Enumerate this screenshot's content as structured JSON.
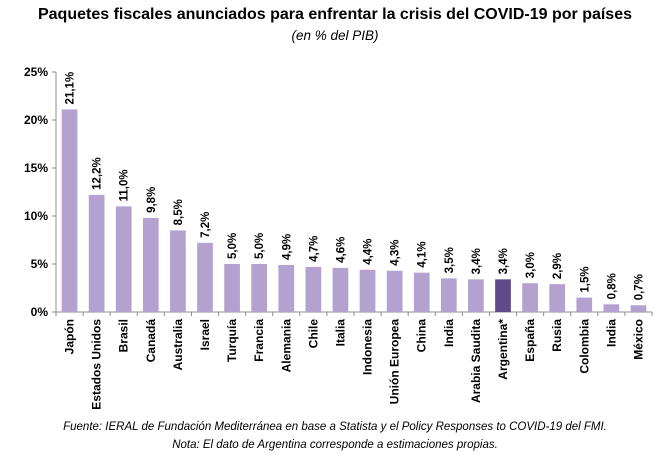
{
  "chart_data": {
    "type": "bar",
    "title": "Paquetes fiscales anunciados para enfrentar la crisis del  COVID-19 por países",
    "subtitle": "(en % del PIB)",
    "xlabel": "",
    "ylabel": "",
    "ylim": [
      0,
      25
    ],
    "yticks": [
      "0%",
      "5%",
      "10%",
      "15%",
      "20%",
      "25%"
    ],
    "grid": false,
    "categories": [
      "Japón",
      "Estados Unidos",
      "Brasil",
      "Canadá",
      "Australia",
      "Israel",
      "Turquía",
      "Francia",
      "Alemania",
      "Chile",
      "Italia",
      "Indonesia",
      "Unión Europea",
      "China",
      "India",
      "Arabia Saudita",
      "Argentina*",
      "España",
      "Rusia",
      "Colombia",
      "India",
      "México"
    ],
    "values": [
      21.1,
      12.2,
      11.0,
      9.8,
      8.5,
      7.2,
      5.0,
      5.0,
      4.9,
      4.7,
      4.6,
      4.4,
      4.3,
      4.1,
      3.5,
      3.4,
      3.4,
      3.0,
      2.9,
      1.5,
      0.8,
      0.7
    ],
    "value_labels": [
      "21,1%",
      "12,2%",
      "11,0%",
      "9,8%",
      "8,5%",
      "7,2%",
      "5,0%",
      "5,0%",
      "4,9%",
      "4,7%",
      "4,6%",
      "4,4%",
      "4,3%",
      "4,1%",
      "3,5%",
      "3,4%",
      "3,4%",
      "3,0%",
      "2,9%",
      "1,5%",
      "0,8%",
      "0,7%"
    ],
    "highlight_category": "Argentina*",
    "colors": {
      "bar": "#B3A2CF",
      "highlight": "#5F4B8B",
      "axis": "#8C8C8C"
    }
  },
  "footer": {
    "source": "Fuente: IERAL de Fundación Mediterránea en base a Statista y el Policy Responses to COVID-19 del FMI.",
    "note": "Nota: El dato de Argentina corresponde a estimaciones propias."
  }
}
